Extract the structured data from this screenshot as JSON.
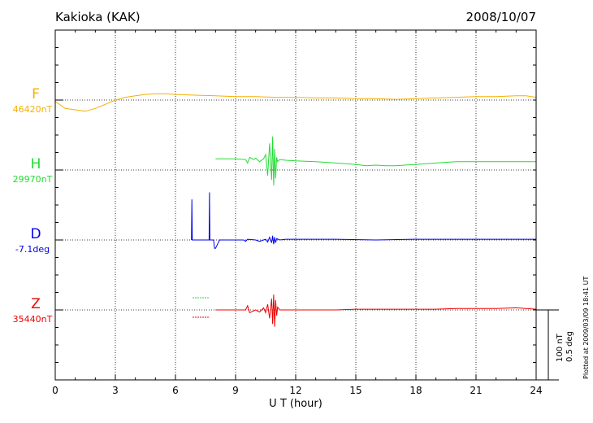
{
  "station_title": "Kakioka (KAK)",
  "date": "2008/10/07",
  "plotted_note": "Plotted at 2009/03/09 18:41 UT",
  "scale": {
    "nT": "100 nT",
    "deg": "0.5 deg"
  },
  "chart_data": {
    "type": "line",
    "title": "Kakioka (KAK)",
    "xlabel": "U T (hour)",
    "ylabel": "",
    "xlim": [
      0,
      24
    ],
    "x_ticks": [
      "0",
      "3",
      "6",
      "9",
      "12",
      "15",
      "18",
      "21",
      "24"
    ],
    "grid": true,
    "series": [
      {
        "name": "F",
        "baseline_label": "46420nT",
        "color": "#f5b000",
        "x": [
          0,
          0.5,
          1,
          1.5,
          2,
          2.5,
          3,
          3.5,
          4,
          4.5,
          5,
          5.5,
          6,
          7,
          8,
          9,
          10,
          11,
          12,
          13,
          14,
          15,
          16,
          17,
          18,
          19,
          20,
          21,
          22,
          23,
          23.5,
          24
        ],
        "y": [
          -2,
          -12,
          -14,
          -16,
          -12,
          -6,
          0,
          4,
          6,
          8,
          9,
          9,
          8,
          7,
          6,
          5,
          5,
          4,
          4,
          3,
          3,
          2,
          2,
          1,
          2,
          3,
          4,
          5,
          5,
          6,
          6,
          4
        ]
      },
      {
        "name": "H",
        "baseline_label": "29970nT",
        "color": "#22dd33",
        "x": [
          8,
          9,
          9.5,
          9.6,
          9.7,
          9.9,
          10,
          10.2,
          10.4,
          10.5,
          10.6,
          10.7,
          10.8,
          10.85,
          10.9,
          10.95,
          11,
          11.05,
          11.1,
          11.2,
          11.5,
          12,
          13,
          14,
          15,
          15.5,
          16,
          16.5,
          17,
          18,
          19,
          20,
          21,
          22,
          23,
          24
        ],
        "y": [
          16,
          16,
          15,
          10,
          18,
          15,
          17,
          12,
          16,
          22,
          -8,
          38,
          -14,
          48,
          -22,
          30,
          -12,
          18,
          12,
          15,
          14,
          13,
          12,
          10,
          8,
          6,
          7,
          6,
          6,
          8,
          10,
          12,
          12,
          12,
          12,
          12
        ]
      },
      {
        "name": "D",
        "baseline_label": "-7.1deg",
        "color": "#0000ee",
        "x": [
          6.8,
          6.82,
          6.84,
          6.9,
          7.0,
          7.5,
          7.68,
          7.7,
          7.72,
          7.8,
          7.9,
          7.95,
          8.0,
          8.2,
          9,
          9.4,
          9.5,
          9.6,
          10,
          10.2,
          10.5,
          10.6,
          10.7,
          10.8,
          10.85,
          10.9,
          10.95,
          11,
          11.05,
          11.2,
          11.5,
          12,
          14,
          16,
          18,
          20,
          22,
          24
        ],
        "y": [
          0,
          58,
          0,
          0,
          0,
          0,
          0,
          68,
          0,
          0,
          0,
          -12,
          -12,
          0,
          0,
          0,
          -2,
          1,
          0,
          -2,
          1,
          -3,
          4,
          -4,
          6,
          -6,
          4,
          -4,
          2,
          0,
          1,
          1,
          1,
          0,
          1,
          1,
          1,
          1
        ]
      },
      {
        "name": "Z",
        "baseline_label": "35440nT",
        "color": "#ee0000",
        "x": [
          8,
          9,
          9.5,
          9.6,
          9.7,
          10,
          10.2,
          10.4,
          10.5,
          10.6,
          10.7,
          10.8,
          10.85,
          10.9,
          10.95,
          11,
          11.05,
          11.1,
          11.2,
          11.5,
          12,
          13,
          14,
          15,
          16,
          17,
          18,
          19,
          20,
          21,
          22,
          23,
          23.5,
          24
        ],
        "y": [
          0,
          0,
          0,
          6,
          -4,
          0,
          -3,
          3,
          -4,
          8,
          -12,
          16,
          -20,
          22,
          -24,
          14,
          -8,
          4,
          0,
          0,
          0,
          0,
          0,
          1,
          1,
          1,
          1,
          1,
          2,
          2,
          2,
          3,
          2,
          1
        ]
      }
    ]
  }
}
